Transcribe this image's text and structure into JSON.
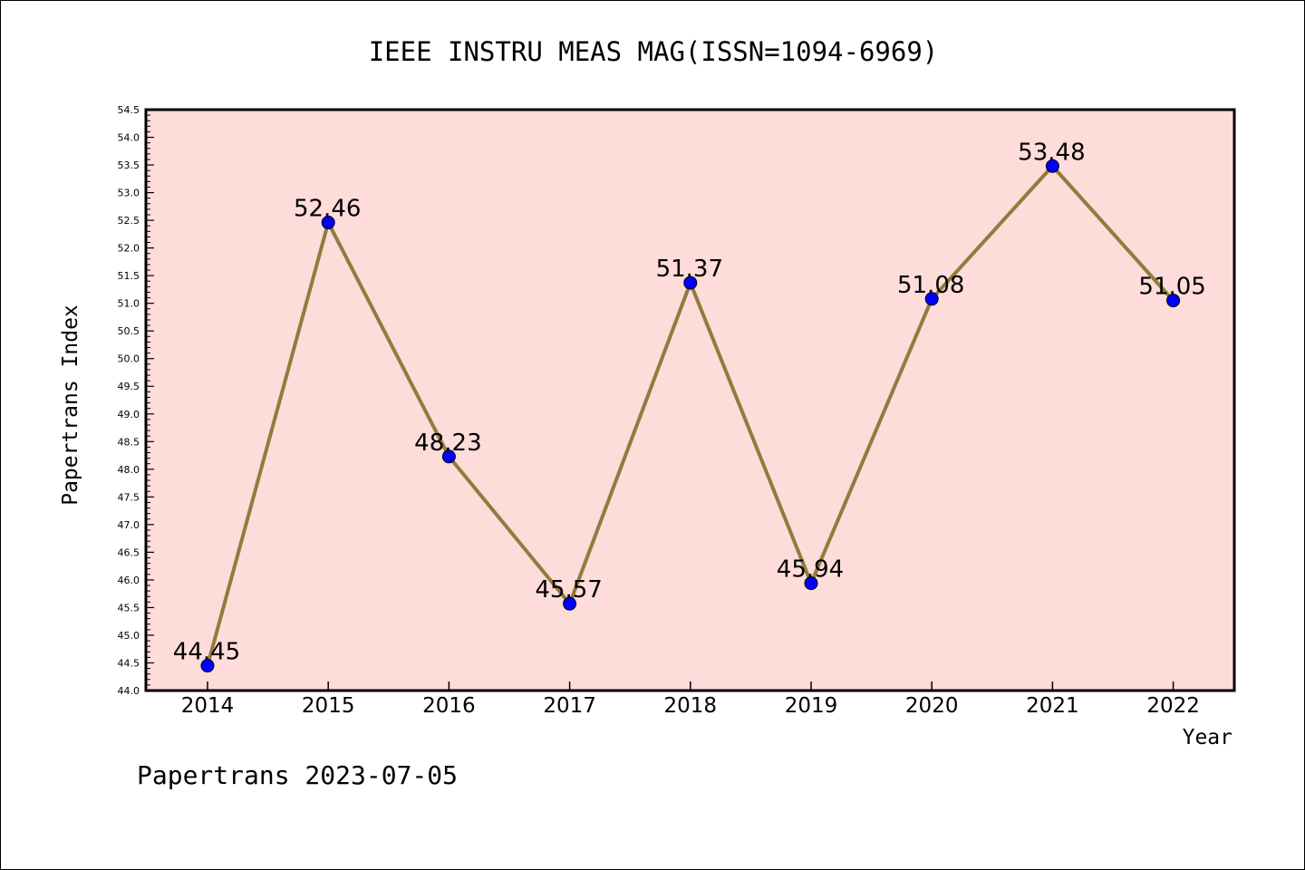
{
  "chart_data": {
    "type": "line",
    "title": "IEEE INSTRU MEAS MAG(ISSN=1094-6969)",
    "xlabel": "Year",
    "ylabel": "Papertrans Index",
    "footer": "Papertrans 2023-07-05",
    "categories": [
      "2014",
      "2015",
      "2016",
      "2017",
      "2018",
      "2019",
      "2020",
      "2021",
      "2022"
    ],
    "values": [
      44.45,
      52.46,
      48.23,
      45.57,
      51.37,
      45.94,
      51.08,
      53.48,
      51.05
    ],
    "data_labels": [
      "44.45",
      "52.46",
      "48.23",
      "45.57",
      "51.37",
      "45.94",
      "51.08",
      "53.48",
      "51.05"
    ],
    "ylim": [
      44.0,
      54.5
    ],
    "ytick_labels": [
      "44.0",
      "44.5",
      "45.0",
      "45.5",
      "46.0",
      "46.5",
      "47.0",
      "47.5",
      "48.0",
      "48.5",
      "49.0",
      "49.5",
      "50.0",
      "50.5",
      "51.0",
      "51.5",
      "52.0",
      "52.5",
      "53.0",
      "53.5",
      "54.0",
      "54.5"
    ],
    "grid": false,
    "colors": {
      "plot_background": "#FDDCDA",
      "line": "#917C3B",
      "marker": "#0000FF"
    }
  }
}
